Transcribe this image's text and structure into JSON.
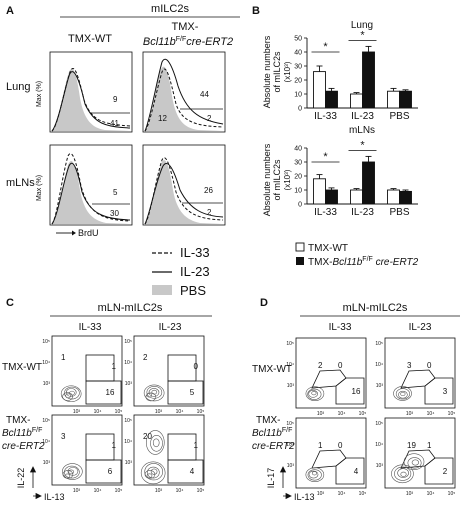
{
  "panels": {
    "A": {
      "label": "A",
      "group": "mILC2s",
      "col_wt": "TMX-WT",
      "col_ko_prefix": "TMX-",
      "col_ko_gene": "Bcl11b",
      "col_ko_sup": "F/F",
      "col_ko_suffix": "cre-ERT2",
      "rows": [
        "Lung",
        "mLNs"
      ],
      "yaxis": "Max (%)",
      "xaxis": "BrdU",
      "hist_values": {
        "lung_wt": [
          "9",
          "41"
        ],
        "lung_ko": [
          "44",
          "12",
          "2"
        ],
        "mln_wt": [
          "5",
          "30"
        ],
        "mln_ko": [
          "26",
          "2"
        ]
      },
      "legend": [
        {
          "name": "IL-33",
          "style": "dashed"
        },
        {
          "name": "IL-23",
          "style": "solid"
        },
        {
          "name": "PBS",
          "style": "fill"
        }
      ]
    },
    "B": {
      "label": "B",
      "lung_title": "Lung",
      "mln_title": "mLNs",
      "ylabel_1": "Absolute numbers",
      "ylabel_2": "of mILC2s",
      "ylabel_unit": "(x10³)",
      "star": "*",
      "legend_wt": "TMX-WT",
      "legend_ko_prefix": "TMX-",
      "legend_ko_gene": "Bcl11b",
      "legend_ko_sup": "F/F",
      "legend_ko_suffix": " cre-ERT2",
      "colors": {
        "wt": "#ffffff",
        "ko": "#111111"
      }
    },
    "C": {
      "label": "C",
      "title": "mLN-mILC2s",
      "cols": [
        "IL-33",
        "IL-23"
      ],
      "row_wt": "TMX-WT",
      "row_ko_1": "TMX-",
      "row_ko_2_gene": "Bcl11b",
      "row_ko_2_sup": "F/F",
      "row_ko_3": "cre-ERT2",
      "y_axis": "IL-22",
      "x_axis": "IL-13",
      "quadrants": {
        "wt_il33": [
          "1",
          "1",
          "16"
        ],
        "wt_il23": [
          "2",
          "0",
          "5"
        ],
        "ko_il33": [
          "3",
          "1",
          "6"
        ],
        "ko_il23": [
          "20",
          "1",
          "4"
        ]
      }
    },
    "D": {
      "label": "D",
      "title": "mLN-mILC2s",
      "cols": [
        "IL-33",
        "IL-23"
      ],
      "row_wt": "TMX-WT",
      "row_ko_1": "TMX-",
      "row_ko_2_gene": "Bcl11b",
      "row_ko_2_sup": "F/F",
      "row_ko_3": "cre-ERT2",
      "y_axis": "IL-17",
      "x_axis": "IL-13",
      "quadrants": {
        "wt_il33": [
          "2",
          "0",
          "16"
        ],
        "wt_il23": [
          "3",
          "0",
          "3"
        ],
        "ko_il33": [
          "1",
          "0",
          "4"
        ],
        "ko_il23": [
          "19",
          "1",
          "2"
        ]
      }
    }
  },
  "chart_data": [
    {
      "type": "bar",
      "title": "Lung",
      "categories": [
        "IL-33",
        "IL-23",
        "PBS"
      ],
      "ylabel": "Absolute numbers of mILC2s (x10³)",
      "ylim": [
        0,
        50
      ],
      "yticks": [
        "0",
        "10",
        "20",
        "30",
        "40",
        "50"
      ],
      "series": [
        {
          "name": "TMX-WT",
          "values": [
            26,
            10,
            12
          ]
        },
        {
          "name": "TMX-Bcl11b F/F cre-ERT2",
          "values": [
            12,
            40,
            12
          ]
        }
      ],
      "errors": [
        [
          4,
          2
        ],
        [
          1,
          4
        ],
        [
          2,
          1
        ]
      ],
      "significance": [
        {
          "category": "IL-33",
          "label": "*"
        },
        {
          "category": "IL-23",
          "label": "*"
        }
      ]
    },
    {
      "type": "bar",
      "title": "mLNs",
      "categories": [
        "IL-33",
        "IL-23",
        "PBS"
      ],
      "ylabel": "Absolute numbers of mILC2s (x10³)",
      "ylim": [
        0,
        40
      ],
      "yticks": [
        "0",
        "10",
        "20",
        "30",
        "40"
      ],
      "series": [
        {
          "name": "TMX-WT",
          "values": [
            18,
            10,
            10
          ]
        },
        {
          "name": "TMX-Bcl11b F/F cre-ERT2",
          "values": [
            10,
            30,
            9
          ]
        }
      ],
      "errors": [
        [
          3,
          1.5
        ],
        [
          1,
          4
        ],
        [
          1,
          1
        ]
      ],
      "significance": [
        {
          "category": "IL-33",
          "label": "*"
        },
        {
          "category": "IL-23",
          "label": "*"
        }
      ]
    }
  ]
}
